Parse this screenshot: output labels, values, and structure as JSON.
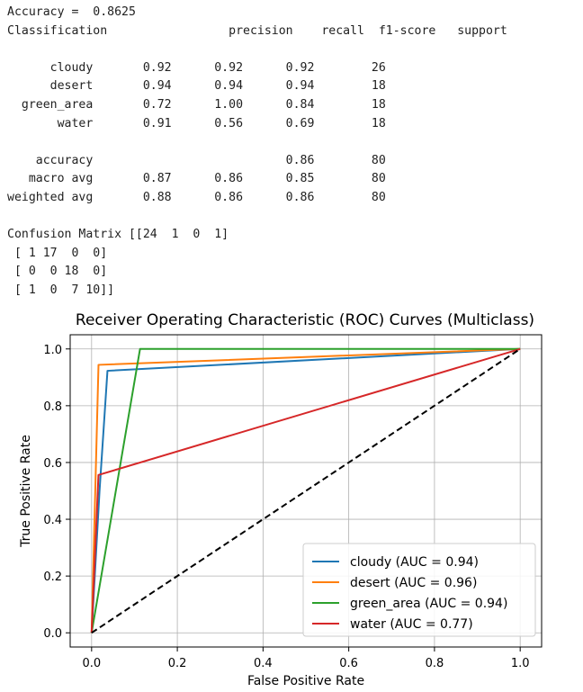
{
  "report": {
    "lines": [
      "Accuracy =  0.8625",
      "Classification                 precision    recall  f1-score   support",
      "",
      "      cloudy       0.92      0.92      0.92        26",
      "      desert       0.94      0.94      0.94        18",
      "  green_area       0.72      1.00      0.84        18",
      "       water       0.91      0.56      0.69        18",
      "",
      "    accuracy                           0.86        80",
      "   macro avg       0.87      0.86      0.85        80",
      "weighted avg       0.88      0.86      0.86        80",
      "",
      "Confusion Matrix [[24  1  0  1]",
      " [ 1 17  0  0]",
      " [ 0  0 18  0]",
      " [ 1  0  7 10]]"
    ]
  },
  "chart_data": {
    "type": "line",
    "title": "Receiver Operating Characteristic (ROC) Curves (Multiclass)",
    "xlabel": "False Positive Rate",
    "ylabel": "True Positive Rate",
    "xlim": [
      -0.05,
      1.05
    ],
    "ylim": [
      -0.05,
      1.05
    ],
    "xticks": [
      "0.0",
      "0.2",
      "0.4",
      "0.6",
      "0.8",
      "1.0"
    ],
    "yticks": [
      "0.0",
      "0.2",
      "0.4",
      "0.6",
      "0.8",
      "1.0"
    ],
    "grid": true,
    "legend_position": "lower-right",
    "series": [
      {
        "name": "cloudy (AUC = 0.94)",
        "color": "#1f77b4",
        "x": [
          0.0,
          0.0185,
          0.037,
          1.0
        ],
        "y": [
          0.0,
          0.5,
          0.923,
          1.0
        ]
      },
      {
        "name": "desert (AUC = 0.96)",
        "color": "#ff7f0e",
        "x": [
          0.0,
          0.0161,
          1.0
        ],
        "y": [
          0.0,
          0.944,
          1.0
        ]
      },
      {
        "name": "green_area (AUC = 0.94)",
        "color": "#2ca02c",
        "x": [
          0.0,
          0.113,
          1.0
        ],
        "y": [
          0.0,
          1.0,
          1.0
        ]
      },
      {
        "name": "water (AUC = 0.77)",
        "color": "#d62728",
        "x": [
          0.0,
          0.016,
          1.0
        ],
        "y": [
          0.0,
          0.556,
          1.0
        ]
      }
    ],
    "diagonal": {
      "x": [
        0.0,
        1.0
      ],
      "y": [
        0.0,
        1.0
      ],
      "color": "#000000",
      "style": "dashed"
    }
  }
}
